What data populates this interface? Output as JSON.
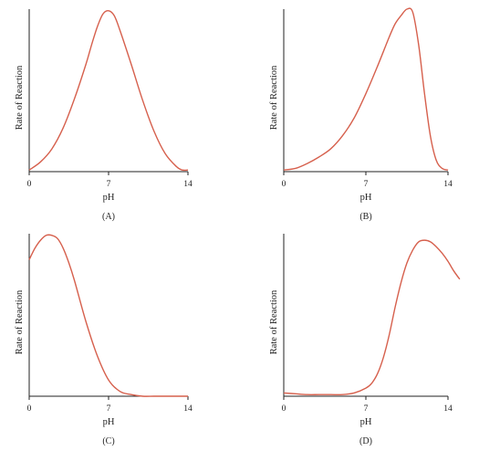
{
  "colors": {
    "curve": "#d6604d",
    "axis": "#222222"
  },
  "chart_data": [
    {
      "type": "line",
      "panel_label": "(A)",
      "xlabel": "pH",
      "ylabel": "Rate of Reaction",
      "xlim": [
        0,
        14
      ],
      "ylim": [
        0,
        1
      ],
      "x_ticks": [
        0,
        7,
        14
      ],
      "y_ticks": [],
      "series": [
        {
          "x": [
            0,
            1,
            2,
            3,
            4,
            5,
            5.5,
            6,
            6.5,
            7,
            7.5,
            8,
            9,
            10,
            11,
            12,
            13,
            13.5,
            14
          ],
          "y": [
            0.01,
            0.06,
            0.14,
            0.27,
            0.45,
            0.66,
            0.78,
            0.89,
            0.97,
            0.99,
            0.96,
            0.87,
            0.66,
            0.44,
            0.25,
            0.11,
            0.03,
            0.01,
            0.01
          ]
        }
      ]
    },
    {
      "type": "line",
      "panel_label": "(B)",
      "xlabel": "pH",
      "ylabel": "Rate of Reaction",
      "xlim": [
        0,
        14
      ],
      "ylim": [
        0,
        1
      ],
      "x_ticks": [
        0,
        7,
        14
      ],
      "y_ticks": [],
      "series": [
        {
          "x": [
            0,
            1,
            2,
            3,
            4,
            5,
            6,
            7,
            8,
            9,
            9.5,
            10,
            10.5,
            11,
            11.5,
            12,
            12.5,
            13,
            13.5,
            14
          ],
          "y": [
            0.01,
            0.02,
            0.05,
            0.09,
            0.14,
            0.22,
            0.33,
            0.48,
            0.65,
            0.83,
            0.91,
            0.96,
            1.0,
            0.98,
            0.78,
            0.48,
            0.22,
            0.07,
            0.02,
            0.01
          ]
        }
      ]
    },
    {
      "type": "line",
      "panel_label": "(C)",
      "xlabel": "pH",
      "ylabel": "Rate of Reaction",
      "xlim": [
        0,
        14
      ],
      "ylim": [
        0,
        1
      ],
      "x_ticks": [
        0,
        7,
        14
      ],
      "y_ticks": [],
      "series": [
        {
          "x": [
            0,
            0.5,
            1,
            1.5,
            2,
            2.5,
            3,
            3.5,
            4,
            5,
            6,
            7,
            8,
            9,
            10,
            11,
            12,
            13,
            14
          ],
          "y": [
            0.84,
            0.91,
            0.96,
            0.99,
            0.99,
            0.97,
            0.91,
            0.82,
            0.71,
            0.46,
            0.25,
            0.1,
            0.03,
            0.01,
            0.0,
            0.0,
            0.0,
            0.0,
            0.0
          ]
        }
      ]
    },
    {
      "type": "line",
      "panel_label": "(D)",
      "xlabel": "pH",
      "ylabel": "Rate of Reaction",
      "xlim": [
        0,
        14
      ],
      "ylim": [
        0,
        1
      ],
      "x_ticks": [
        0,
        7,
        14
      ],
      "y_ticks": [],
      "series": [
        {
          "x": [
            0,
            1,
            2,
            3,
            4,
            5,
            6,
            7,
            7.5,
            8,
            8.5,
            9,
            9.5,
            10,
            10.5,
            11,
            11.5,
            12,
            12.5,
            13,
            13.5,
            14,
            14.5,
            15
          ],
          "y": [
            0.02,
            0.015,
            0.01,
            0.01,
            0.01,
            0.01,
            0.02,
            0.05,
            0.08,
            0.14,
            0.24,
            0.38,
            0.55,
            0.7,
            0.82,
            0.9,
            0.95,
            0.96,
            0.95,
            0.92,
            0.88,
            0.83,
            0.77,
            0.72
          ]
        }
      ]
    }
  ]
}
